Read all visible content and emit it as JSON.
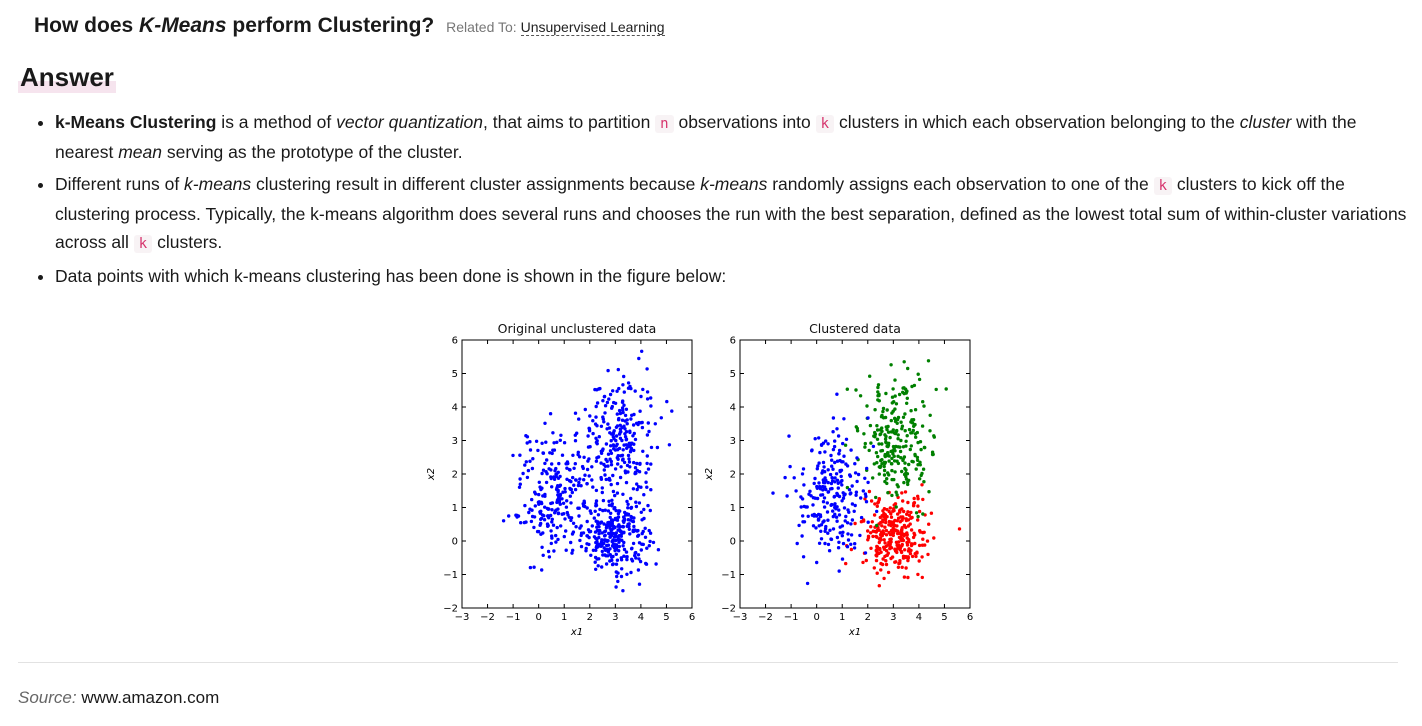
{
  "question": {
    "prefix": "How does",
    "emphasis": "K-Means",
    "suffix": "perform Clustering?",
    "related_label": "Related To:",
    "related_link": "Unsupervised Learning"
  },
  "answer_heading": "Answer",
  "bullets": [
    {
      "b": "k-Means Clustering",
      "t1": " is a method of ",
      "i1": "vector quantization",
      "t2": ", that aims to partition ",
      "c1": "n",
      "t3": " observations into ",
      "c2": "k",
      "t4": " clusters in which each observation belonging to the ",
      "i2": "cluster",
      "t5": " with the nearest ",
      "i3": "mean",
      "t6": " serving as the prototype of the cluster."
    },
    {
      "t1": "Different runs of ",
      "i1": "k-means",
      "t2": " clustering result in different cluster assignments because ",
      "i2": "k-means",
      "t3": " randomly assigns each observation to one of the ",
      "c1": "k",
      "t4": " clusters to kick off the clustering process. Typically, the k-means algorithm does several runs and chooses the run with the best separation, defined as the lowest total sum of within-cluster variations across all ",
      "c2": "k",
      "t5": " clusters."
    },
    {
      "t1": "Data points with which k-means clustering has been done is shown in the figure below:"
    }
  ],
  "chart_data": [
    {
      "type": "scatter",
      "title": "Original unclustered data",
      "xlabel": "x1",
      "ylabel": "x2",
      "xlim": [
        -3,
        6
      ],
      "ylim": [
        -2,
        6
      ],
      "xticks": [
        "−3",
        "−2",
        "−1",
        "0",
        "1",
        "2",
        "3",
        "4",
        "5",
        "6"
      ],
      "yticks": [
        "−2",
        "−1",
        "0",
        "1",
        "2",
        "3",
        "4",
        "5",
        "6"
      ],
      "series": [
        {
          "color": "#0000ff",
          "center": [
            3.0,
            0.2
          ],
          "spread": [
            0.65,
            0.55
          ],
          "count": 300
        },
        {
          "color": "#0000ff",
          "center": [
            3.1,
            3.1
          ],
          "spread": [
            0.75,
            0.95
          ],
          "count": 260
        },
        {
          "color": "#0000ff",
          "center": [
            0.6,
            1.3
          ],
          "spread": [
            0.75,
            0.95
          ],
          "count": 240
        }
      ]
    },
    {
      "type": "scatter",
      "title": "Clustered data",
      "xlabel": "x1",
      "ylabel": "x2",
      "xlim": [
        -3,
        6
      ],
      "ylim": [
        -2,
        6
      ],
      "xticks": [
        "−3",
        "−2",
        "−1",
        "0",
        "1",
        "2",
        "3",
        "4",
        "5",
        "6"
      ],
      "yticks": [
        "−2",
        "−1",
        "0",
        "1",
        "2",
        "3",
        "4",
        "5",
        "6"
      ],
      "series": [
        {
          "color": "#ff0000",
          "center": [
            3.0,
            0.2
          ],
          "spread": [
            0.65,
            0.55
          ],
          "count": 300
        },
        {
          "color": "#008000",
          "center": [
            3.1,
            3.1
          ],
          "spread": [
            0.75,
            0.95
          ],
          "count": 260
        },
        {
          "color": "#0000ff",
          "center": [
            0.6,
            1.3
          ],
          "spread": [
            0.75,
            0.95
          ],
          "count": 240
        }
      ]
    }
  ],
  "source": {
    "label": "Source:",
    "value": "www.amazon.com"
  }
}
